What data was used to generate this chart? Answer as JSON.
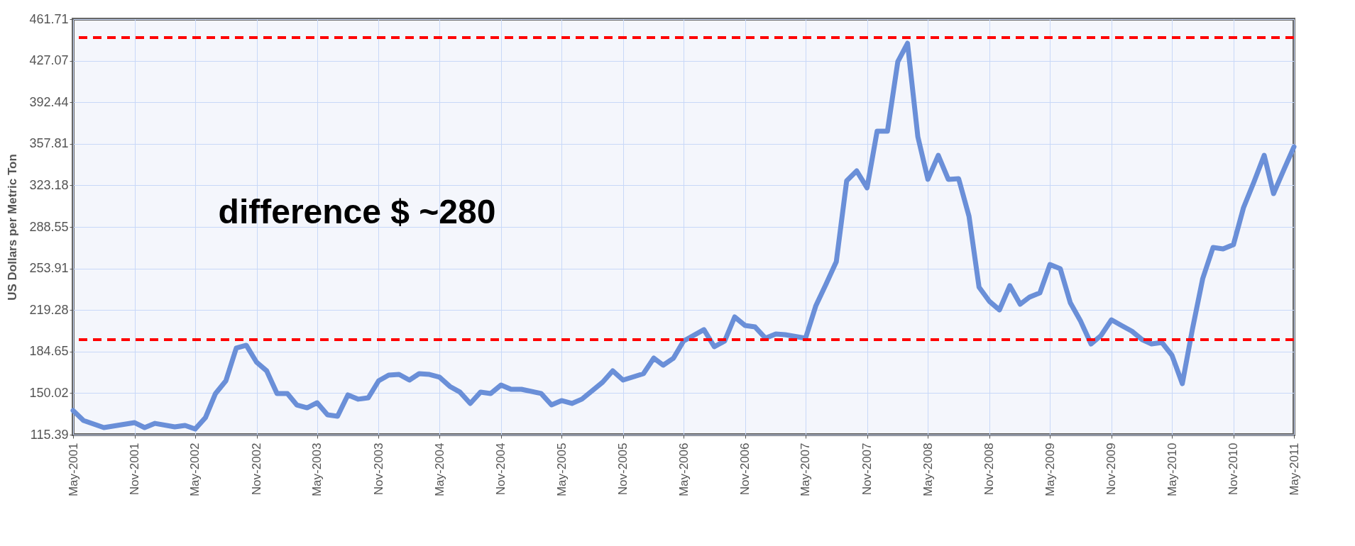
{
  "chart_data": {
    "type": "line",
    "ylabel": "US Dollars per Metric Ton",
    "annotations": [
      "difference $ ~280"
    ],
    "x": [
      "2001-05",
      "2001-06",
      "2001-08",
      "2001-11",
      "2001-12",
      "2002-01",
      "2002-03",
      "2002-04",
      "2002-05",
      "2002-06",
      "2002-07",
      "2002-08",
      "2002-09",
      "2002-10",
      "2002-11",
      "2002-12",
      "2003-01",
      "2003-02",
      "2003-03",
      "2003-04",
      "2003-05",
      "2003-06",
      "2003-07",
      "2003-08",
      "2003-09",
      "2003-10",
      "2003-11",
      "2003-12",
      "2004-01",
      "2004-02",
      "2004-03",
      "2004-04",
      "2004-05",
      "2004-06",
      "2004-07",
      "2004-08",
      "2004-09",
      "2004-10",
      "2004-11",
      "2004-12",
      "2005-01",
      "2005-03",
      "2005-04",
      "2005-05",
      "2005-06",
      "2005-07",
      "2005-09",
      "2005-10",
      "2005-11",
      "2006-01",
      "2006-02",
      "2006-03",
      "2006-04",
      "2006-05",
      "2006-07",
      "2006-08",
      "2006-09",
      "2006-10",
      "2006-11",
      "2006-12",
      "2007-01",
      "2007-02",
      "2007-03",
      "2007-05",
      "2007-06",
      "2007-07",
      "2007-08",
      "2007-09",
      "2007-10",
      "2007-11",
      "2007-12",
      "2008-01",
      "2008-02",
      "2008-03",
      "2008-04",
      "2008-05",
      "2008-06",
      "2008-07",
      "2008-08",
      "2008-09",
      "2008-10",
      "2008-11",
      "2008-12",
      "2009-01",
      "2009-02",
      "2009-03",
      "2009-04",
      "2009-05",
      "2009-06",
      "2009-07",
      "2009-08",
      "2009-09",
      "2009-10",
      "2009-11",
      "2009-12",
      "2010-01",
      "2010-02",
      "2010-03",
      "2010-04",
      "2010-05",
      "2010-06",
      "2010-07",
      "2010-08",
      "2010-09",
      "2010-10",
      "2010-11",
      "2010-12",
      "2011-01",
      "2011-02",
      "2011-03",
      "2011-04",
      "2011-05"
    ],
    "series": [
      {
        "color": "#6a8fd8",
        "values": [
          135.5,
          127.2,
          121.3,
          125.4,
          121.3,
          124.8,
          121.9,
          123.1,
          120.1,
          129.6,
          149.7,
          160.3,
          187.5,
          189.9,
          175.7,
          168.6,
          149.7,
          149.7,
          140.2,
          137.8,
          142.0,
          131.9,
          130.8,
          148.5,
          145.0,
          146.1,
          160.3,
          165.0,
          165.6,
          160.9,
          166.2,
          165.6,
          163.3,
          155.6,
          150.9,
          141.4,
          150.9,
          149.7,
          156.8,
          153.2,
          153.2,
          149.7,
          140.2,
          143.8,
          141.4,
          145.0,
          159.1,
          168.6,
          160.9,
          166.2,
          179.2,
          173.3,
          179.2,
          193.4,
          202.9,
          188.7,
          193.4,
          213.5,
          206.4,
          205.2,
          195.8,
          199.3,
          198.7,
          195.8,
          223.0,
          240.7,
          259.6,
          327.0,
          335.2,
          321.1,
          368.3,
          368.3,
          426.3,
          441.6,
          363.6,
          328.2,
          348.2,
          328.2,
          328.7,
          297.4,
          238.3,
          226.5,
          219.4,
          239.5,
          224.1,
          230.0,
          233.6,
          257.2,
          253.7,
          225.3,
          209.9,
          191.0,
          198.1,
          211.1,
          206.4,
          201.7,
          194.6,
          191.0,
          192.2,
          181.6,
          157.9,
          202.9,
          245.4,
          271.4,
          270.2,
          273.8,
          304.5,
          325.8,
          348.2,
          316.3,
          336.4,
          355.3
        ]
      }
    ],
    "ylim": [
      115.39,
      461.71
    ],
    "yticks": [
      115.39,
      150.02,
      184.65,
      219.28,
      253.91,
      288.55,
      323.18,
      357.81,
      392.44,
      427.07,
      461.71
    ],
    "xlim": [
      "2001-05",
      "2011-05"
    ],
    "xticks": [
      {
        "value": "2001-05",
        "label": "May-2001"
      },
      {
        "value": "2001-11",
        "label": "Nov-2001"
      },
      {
        "value": "2002-05",
        "label": "May-2002"
      },
      {
        "value": "2002-11",
        "label": "Nov-2002"
      },
      {
        "value": "2003-05",
        "label": "May-2003"
      },
      {
        "value": "2003-11",
        "label": "Nov-2003"
      },
      {
        "value": "2004-05",
        "label": "May-2004"
      },
      {
        "value": "2004-11",
        "label": "Nov-2004"
      },
      {
        "value": "2005-05",
        "label": "May-2005"
      },
      {
        "value": "2005-11",
        "label": "Nov-2005"
      },
      {
        "value": "2006-05",
        "label": "May-2006"
      },
      {
        "value": "2006-11",
        "label": "Nov-2006"
      },
      {
        "value": "2007-05",
        "label": "May-2007"
      },
      {
        "value": "2007-11",
        "label": "Nov-2007"
      },
      {
        "value": "2008-05",
        "label": "May-2008"
      },
      {
        "value": "2008-11",
        "label": "Nov-2008"
      },
      {
        "value": "2009-05",
        "label": "May-2009"
      },
      {
        "value": "2009-11",
        "label": "Nov-2009"
      },
      {
        "value": "2010-05",
        "label": "May-2010"
      },
      {
        "value": "2010-11",
        "label": "Nov-2010"
      },
      {
        "value": "2011-05",
        "label": "May-2011"
      }
    ],
    "ref_lines": [
      {
        "axis": "y",
        "value": 446.4,
        "color": "#ff0000",
        "line_style": "dashed"
      },
      {
        "axis": "y",
        "value": 194.6,
        "color": "#ff0000",
        "line_style": "dashed"
      }
    ],
    "grid": true,
    "legend": false
  }
}
